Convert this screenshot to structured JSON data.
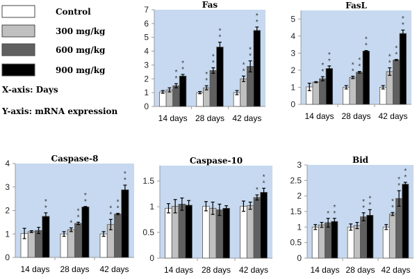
{
  "legend": {
    "items": [
      {
        "label": "Control",
        "color": "#ffffff"
      },
      {
        "label": "300 mg/kg",
        "color": "#c0c0c0"
      },
      {
        "label": "600 mg/kg",
        "color": "#606060"
      },
      {
        "label": "900 mg/kg",
        "color": "#000000"
      }
    ],
    "xaxis_note": "X-axis: Days",
    "yaxis_note": "Y-axis: mRNA expression"
  },
  "plot_background": "#c6d9f0",
  "chart_data": [
    {
      "type": "bar",
      "title": "Fas",
      "xlabel": "Days",
      "ylabel": "mRNA expression",
      "categories": [
        "14 days",
        "28 days",
        "42 days"
      ],
      "ylim": [
        0,
        7
      ],
      "yticks": [
        "0",
        "1",
        "2",
        "3",
        "4",
        "5",
        "6",
        "7"
      ],
      "series": [
        {
          "name": "Control",
          "values": [
            1.05,
            1.0,
            1.0
          ],
          "errors": [
            0.1,
            0.08,
            0.15
          ],
          "stars": [
            "",
            "",
            ""
          ]
        },
        {
          "name": "300 mg/kg",
          "values": [
            1.2,
            1.35,
            2.0
          ],
          "errors": [
            0.15,
            0.15,
            0.2
          ],
          "stars": [
            "",
            "**",
            "**"
          ]
        },
        {
          "name": "600 mg/kg",
          "values": [
            1.5,
            2.6,
            2.9
          ],
          "errors": [
            0.15,
            0.2,
            0.4
          ],
          "stars": [
            "**",
            "**",
            "**"
          ]
        },
        {
          "name": "900 mg/kg",
          "values": [
            2.2,
            4.3,
            5.5
          ],
          "errors": [
            0.12,
            0.35,
            0.25
          ],
          "stars": [
            "**",
            "**",
            "**"
          ]
        }
      ]
    },
    {
      "type": "bar",
      "title": "FasL",
      "xlabel": "Days",
      "ylabel": "mRNA expression",
      "categories": [
        "14 days",
        "28 days",
        "42 days"
      ],
      "ylim": [
        0,
        5.5
      ],
      "yticks": [
        "0",
        "1",
        "2",
        "3",
        "4",
        "5"
      ],
      "series": [
        {
          "name": "Control",
          "values": [
            1.02,
            1.0,
            1.0
          ],
          "errors": [
            0.22,
            0.1,
            0.1
          ],
          "stars": [
            "",
            "",
            ""
          ]
        },
        {
          "name": "300 mg/kg",
          "values": [
            1.3,
            1.58,
            1.92
          ],
          "errors": [
            0.03,
            0.07,
            0.22
          ],
          "stars": [
            "",
            "**",
            "**"
          ]
        },
        {
          "name": "600 mg/kg",
          "values": [
            1.5,
            1.88,
            2.6
          ],
          "errors": [
            0.12,
            0.05,
            0.03
          ],
          "stars": [
            "**",
            "**",
            "**"
          ]
        },
        {
          "name": "900 mg/kg",
          "values": [
            2.1,
            3.12,
            4.15
          ],
          "errors": [
            0.15,
            0.03,
            0.2
          ],
          "stars": [
            "**",
            "**",
            "**"
          ]
        }
      ]
    },
    {
      "type": "bar",
      "title": "Caspase-8",
      "xlabel": "Days",
      "ylabel": "mRNA expression",
      "categories": [
        "14 days",
        "28 days",
        "42 days"
      ],
      "ylim": [
        0,
        4
      ],
      "yticks": [
        "0",
        "1",
        "2",
        "3",
        "4"
      ],
      "series": [
        {
          "name": "Control",
          "values": [
            1.02,
            1.0,
            1.0
          ],
          "errors": [
            0.22,
            0.1,
            0.1
          ],
          "stars": [
            "",
            "",
            ""
          ]
        },
        {
          "name": "300 mg/kg",
          "values": [
            1.1,
            1.18,
            1.4
          ],
          "errors": [
            0.04,
            0.08,
            0.22
          ],
          "stars": [
            "",
            "*",
            "**"
          ]
        },
        {
          "name": "600 mg/kg",
          "values": [
            1.15,
            1.45,
            1.85
          ],
          "errors": [
            0.13,
            0.05,
            0.03
          ],
          "stars": [
            "",
            "**",
            "**"
          ]
        },
        {
          "name": "900 mg/kg",
          "values": [
            1.75,
            2.15,
            2.88
          ],
          "errors": [
            0.15,
            0.02,
            0.2
          ],
          "stars": [
            "**",
            "**",
            "**"
          ]
        }
      ]
    },
    {
      "type": "bar",
      "title": "Caspase-10",
      "xlabel": "Days",
      "ylabel": "mRNA expression",
      "categories": [
        "14 days",
        "28 days",
        "42 days"
      ],
      "ylim": [
        0,
        1.8
      ],
      "yticks": [
        "0",
        "0.5",
        "1",
        "1.5"
      ],
      "series": [
        {
          "name": "Control",
          "values": [
            0.97,
            1.01,
            1.01
          ],
          "errors": [
            0.09,
            0.09,
            0.1
          ],
          "stars": [
            "",
            "",
            ""
          ]
        },
        {
          "name": "300 mg/kg",
          "values": [
            1.01,
            0.97,
            1.02
          ],
          "errors": [
            0.13,
            0.12,
            0.07
          ],
          "stars": [
            "",
            "",
            ""
          ]
        },
        {
          "name": "600 mg/kg",
          "values": [
            1.05,
            0.94,
            1.18
          ],
          "errors": [
            0.12,
            0.11,
            0.05
          ],
          "stars": [
            "",
            "",
            "*"
          ]
        },
        {
          "name": "900 mg/kg",
          "values": [
            1.03,
            0.97,
            1.28
          ],
          "errors": [
            0.09,
            0.05,
            0.08
          ],
          "stars": [
            "",
            "",
            "**"
          ]
        }
      ]
    },
    {
      "type": "bar",
      "title": "Bid",
      "xlabel": "Days",
      "ylabel": "mRNA expression",
      "categories": [
        "14 days",
        "28 days",
        "42 days"
      ],
      "ylim": [
        0,
        3
      ],
      "yticks": [
        "0",
        "0.5",
        "1",
        "1.5",
        "2",
        "2.5",
        "3"
      ],
      "series": [
        {
          "name": "Control",
          "values": [
            1.0,
            1.0,
            1.0
          ],
          "errors": [
            0.08,
            0.1,
            0.08
          ],
          "stars": [
            "",
            "",
            ""
          ]
        },
        {
          "name": "300 mg/kg",
          "values": [
            1.07,
            1.05,
            1.42
          ],
          "errors": [
            0.08,
            0.1,
            0.05
          ],
          "stars": [
            "",
            "",
            "**"
          ]
        },
        {
          "name": "600 mg/kg",
          "values": [
            1.14,
            1.33,
            1.92
          ],
          "errors": [
            0.14,
            0.13,
            0.25
          ],
          "stars": [
            "*",
            "**",
            "**"
          ]
        },
        {
          "name": "900 mg/kg",
          "values": [
            1.18,
            1.38,
            2.38
          ],
          "errors": [
            0.1,
            0.18,
            0.06
          ],
          "stars": [
            "**",
            "**",
            "**"
          ]
        }
      ]
    }
  ]
}
